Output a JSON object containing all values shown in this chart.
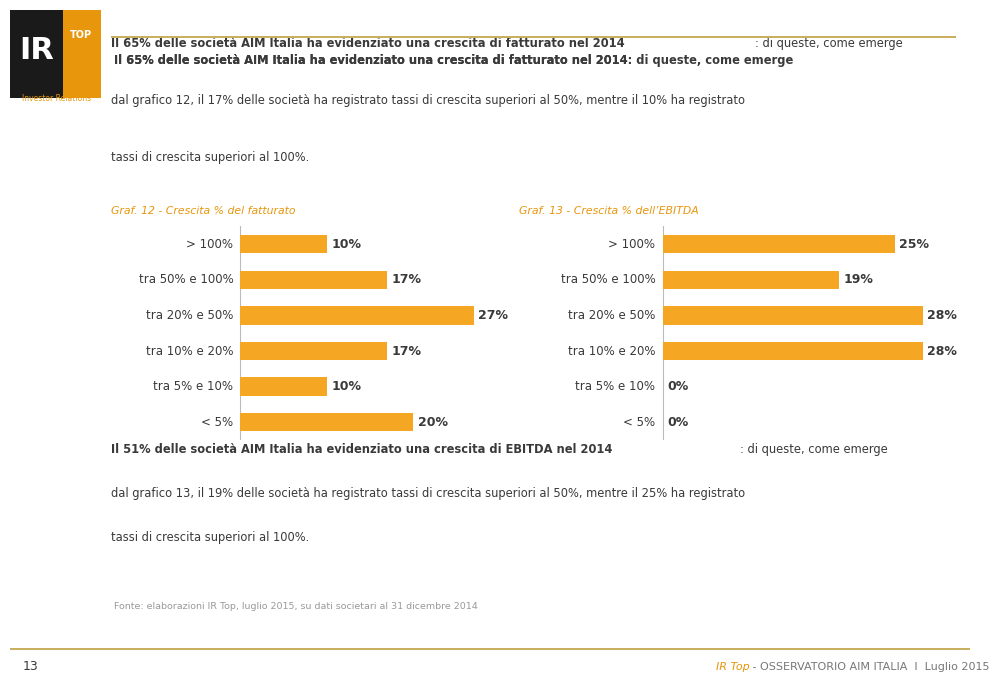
{
  "graf12_title": "Graf. 12 - Crescita % del fatturato",
  "graf13_title": "Graf. 13 - Crescita ’% dell’EBITDA",
  "graf13_title_clean": "Graf. 13 - Crescita % dell’EBITDA",
  "categories": [
    "> 100%",
    "tra 50% e 100%",
    "tra 20% e 50%",
    "tra 10% e 20%",
    "tra 5% e 10%",
    "< 5%"
  ],
  "values_left": [
    10,
    17,
    27,
    17,
    10,
    20
  ],
  "values_right": [
    25,
    19,
    28,
    28,
    0,
    0
  ],
  "bar_color": "#F5A623",
  "text_color": "#3a3a3a",
  "orange_color": "#E8960C",
  "gray_light": "#aaaaaa",
  "separator_color": "#C8B060",
  "background_color": "#FFFFFF",
  "logo_dark": "#1a1a1a",
  "logo_orange": "#E8960C",
  "page_number": "13",
  "footer_source": "Fonte: elaborazioni IR Top, luglio 2015, su dati societari al 31 dicembre 2014",
  "top_bold": "Il 65% delle società AIM Italia ha evidenziato una crescita di fatturato nel 2014",
  "top_norm": ": di queste, come emerge dal grafico 12, il 17% delle società ha registrato tassi di crescita superiori al 50%, mentre il 10% ha registrato tassi di crescita superiori al 100%.",
  "bot_bold": "Il 51% delle società AIM Italia ha evidenziato una crescita di EBITDA nel 2014",
  "bot_norm": ": di queste, come emerge dal grafico 13, il 19% delle società ha registrato tassi di crescita superiori al 50%, mentre il 25% ha registrato tassi di crescita superiori al 100%.",
  "footer_ir": "IR Top",
  "footer_rest": " - OSSERVATORIO AIM ITALIA  I  Luglio 2015"
}
